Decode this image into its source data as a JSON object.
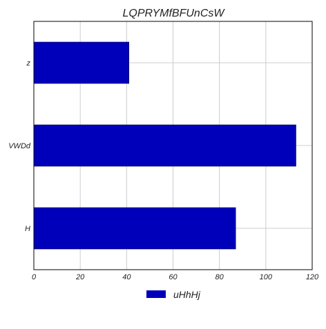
{
  "chart_data": {
    "type": "bar",
    "orientation": "horizontal",
    "title": "LQPRYMfBFUnCsW",
    "xlabel": "",
    "ylabel": "",
    "categories": [
      "H",
      "VWDd",
      "z"
    ],
    "series": [
      {
        "name": "uHhHj",
        "values": [
          87,
          113,
          41
        ],
        "color": "#0000bb"
      }
    ],
    "xlim": [
      0,
      120
    ],
    "x_ticks": [
      0,
      20,
      40,
      60,
      80,
      100,
      120
    ],
    "grid": true,
    "legend": "bottom-center"
  }
}
